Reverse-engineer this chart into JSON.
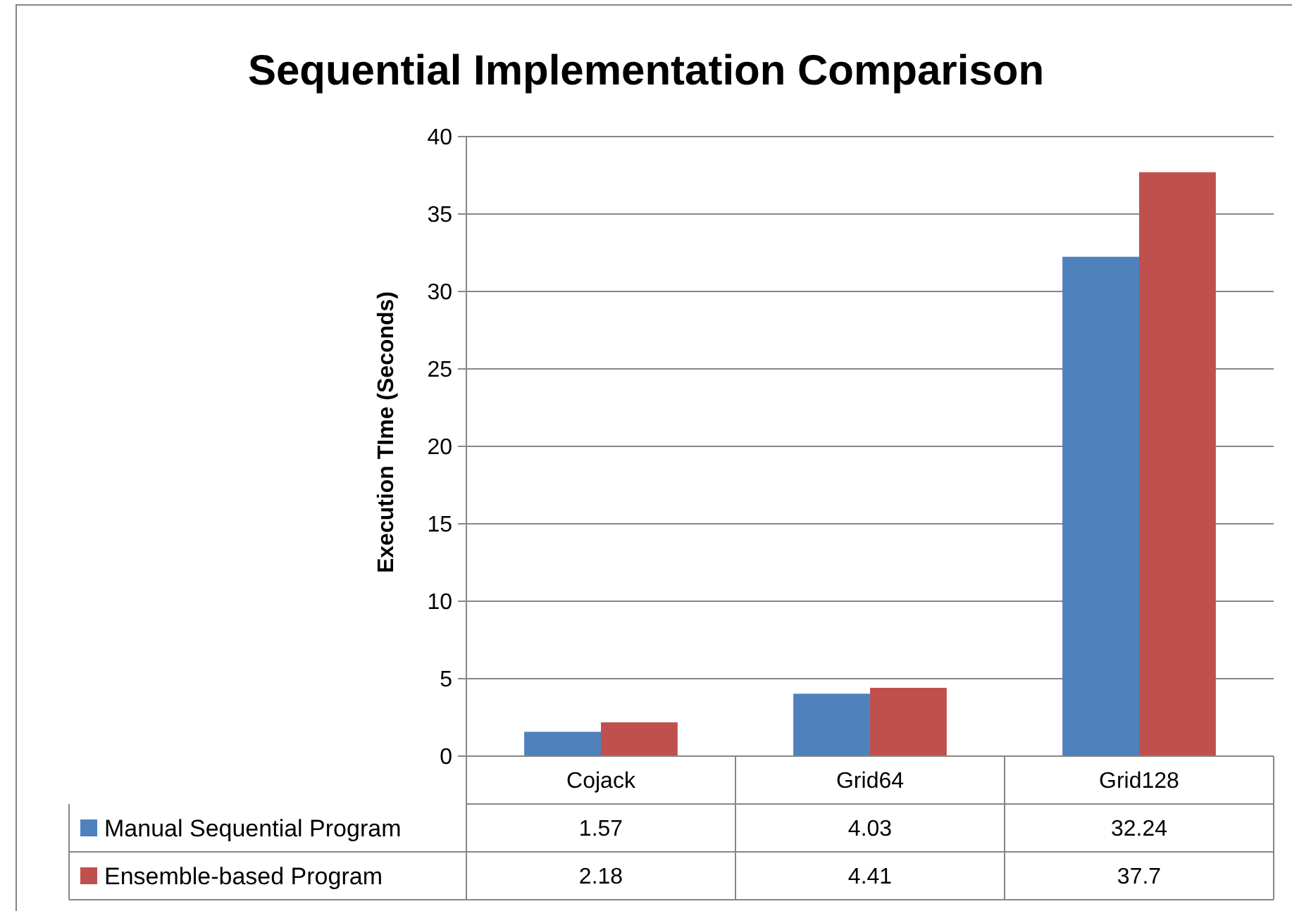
{
  "chart_data": {
    "type": "bar",
    "title": "Sequential Implementation Comparison",
    "ylabel": "Execution TIme (Seconds)",
    "categories": [
      "Cojack",
      "Grid64",
      "Grid128"
    ],
    "series": [
      {
        "name": "Manual Sequential Program",
        "color": "#4f81bd",
        "values": [
          1.57,
          4.03,
          32.24
        ]
      },
      {
        "name": "Ensemble-based Program",
        "color": "#c0504d",
        "values": [
          2.18,
          4.41,
          37.7
        ]
      }
    ],
    "ylim": [
      0,
      40
    ],
    "yticks": [
      0,
      5,
      10,
      15,
      20,
      25,
      30,
      35,
      40
    ],
    "grid": "y",
    "legend": "bottom",
    "data_labels": true
  }
}
